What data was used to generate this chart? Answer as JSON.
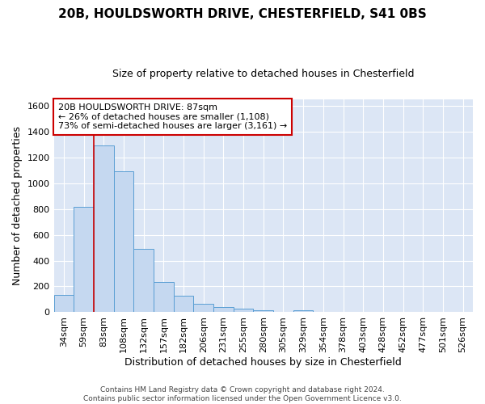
{
  "title1": "20B, HOULDSWORTH DRIVE, CHESTERFIELD, S41 0BS",
  "title2": "Size of property relative to detached houses in Chesterfield",
  "xlabel": "Distribution of detached houses by size in Chesterfield",
  "ylabel": "Number of detached properties",
  "footer1": "Contains HM Land Registry data © Crown copyright and database right 2024.",
  "footer2": "Contains public sector information licensed under the Open Government Licence v3.0.",
  "bar_labels": [
    "34sqm",
    "59sqm",
    "83sqm",
    "108sqm",
    "132sqm",
    "157sqm",
    "182sqm",
    "206sqm",
    "231sqm",
    "255sqm",
    "280sqm",
    "305sqm",
    "329sqm",
    "354sqm",
    "378sqm",
    "403sqm",
    "428sqm",
    "452sqm",
    "477sqm",
    "501sqm",
    "526sqm"
  ],
  "bar_values": [
    137,
    815,
    1290,
    1090,
    490,
    232,
    130,
    65,
    38,
    27,
    18,
    0,
    15,
    0,
    0,
    0,
    0,
    0,
    0,
    0,
    0
  ],
  "bar_color": "#c5d8f0",
  "bar_edge_color": "#5a9fd4",
  "vline_x_index": 2,
  "vline_color": "#cc0000",
  "annotation_text": "20B HOULDSWORTH DRIVE: 87sqm\n← 26% of detached houses are smaller (1,108)\n73% of semi-detached houses are larger (3,161) →",
  "annotation_box_facecolor": "#ffffff",
  "annotation_box_edge": "#cc0000",
  "ylim": [
    0,
    1650
  ],
  "yticks": [
    0,
    200,
    400,
    600,
    800,
    1000,
    1200,
    1400,
    1600
  ],
  "bg_color": "#dce6f5",
  "grid_color": "#ffffff",
  "fig_bg_color": "#ffffff",
  "title_fontsize": 11,
  "subtitle_fontsize": 9,
  "axis_label_fontsize": 9,
  "tick_fontsize": 8,
  "annotation_fontsize": 8
}
